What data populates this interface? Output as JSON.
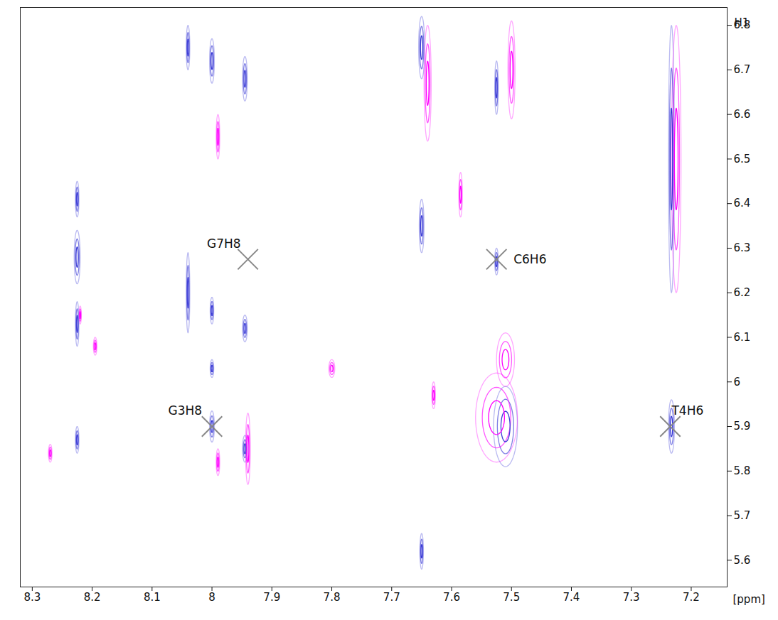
{
  "chart_data": {
    "type": "contour",
    "xlabel": "[ppm]",
    "ylabel": "H1",
    "xlim": [
      8.32,
      7.14
    ],
    "ylim": [
      5.54,
      6.84
    ],
    "xticks": [
      8.3,
      8.2,
      8.1,
      8,
      7.9,
      7.8,
      7.7,
      7.6,
      7.5,
      7.4,
      7.3,
      7.2
    ],
    "yticks": [
      5.6,
      5.7,
      5.8,
      5.9,
      6,
      6.1,
      6.2,
      6.3,
      6.4,
      6.5,
      6.6,
      6.7,
      6.8
    ],
    "series": [
      {
        "color": "#3a3ad6",
        "peaks": [
          {
            "x": 8.225,
            "y": 6.28,
            "dx": 0.005,
            "dy": 0.06
          },
          {
            "x": 8.225,
            "y": 5.87,
            "dx": 0.003,
            "dy": 0.03
          },
          {
            "x": 8.225,
            "y": 6.13,
            "dx": 0.003,
            "dy": 0.05
          },
          {
            "x": 8.225,
            "y": 6.41,
            "dx": 0.003,
            "dy": 0.04
          },
          {
            "x": 8.0,
            "y": 5.9,
            "dx": 0.004,
            "dy": 0.035
          },
          {
            "x": 8.0,
            "y": 6.03,
            "dx": 0.003,
            "dy": 0.02
          },
          {
            "x": 8.0,
            "y": 6.16,
            "dx": 0.003,
            "dy": 0.03
          },
          {
            "x": 8.0,
            "y": 6.72,
            "dx": 0.004,
            "dy": 0.05
          },
          {
            "x": 7.945,
            "y": 5.85,
            "dx": 0.004,
            "dy": 0.03
          },
          {
            "x": 7.945,
            "y": 6.12,
            "dx": 0.004,
            "dy": 0.03
          },
          {
            "x": 7.945,
            "y": 6.68,
            "dx": 0.004,
            "dy": 0.05
          },
          {
            "x": 8.04,
            "y": 6.2,
            "dx": 0.003,
            "dy": 0.09
          },
          {
            "x": 8.04,
            "y": 6.75,
            "dx": 0.003,
            "dy": 0.05
          },
          {
            "x": 7.65,
            "y": 6.35,
            "dx": 0.004,
            "dy": 0.06
          },
          {
            "x": 7.65,
            "y": 6.75,
            "dx": 0.005,
            "dy": 0.07
          },
          {
            "x": 7.65,
            "y": 5.62,
            "dx": 0.003,
            "dy": 0.04
          },
          {
            "x": 7.51,
            "y": 5.9,
            "dx": 0.02,
            "dy": 0.09
          },
          {
            "x": 7.525,
            "y": 6.27,
            "dx": 0.003,
            "dy": 0.03
          },
          {
            "x": 7.525,
            "y": 6.66,
            "dx": 0.003,
            "dy": 0.06
          },
          {
            "x": 7.233,
            "y": 5.9,
            "dx": 0.005,
            "dy": 0.06
          },
          {
            "x": 7.233,
            "y": 6.5,
            "dx": 0.005,
            "dy": 0.3
          }
        ]
      },
      {
        "color": "#ff00ff",
        "peaks": [
          {
            "x": 7.525,
            "y": 5.92,
            "dx": 0.035,
            "dy": 0.1
          },
          {
            "x": 7.51,
            "y": 6.05,
            "dx": 0.015,
            "dy": 0.06
          },
          {
            "x": 7.64,
            "y": 6.67,
            "dx": 0.006,
            "dy": 0.13
          },
          {
            "x": 7.5,
            "y": 6.7,
            "dx": 0.006,
            "dy": 0.11
          },
          {
            "x": 7.225,
            "y": 6.5,
            "dx": 0.008,
            "dy": 0.3
          },
          {
            "x": 7.94,
            "y": 5.85,
            "dx": 0.004,
            "dy": 0.08
          },
          {
            "x": 7.99,
            "y": 5.82,
            "dx": 0.003,
            "dy": 0.03
          },
          {
            "x": 7.99,
            "y": 6.55,
            "dx": 0.003,
            "dy": 0.05
          },
          {
            "x": 8.195,
            "y": 6.08,
            "dx": 0.003,
            "dy": 0.02
          },
          {
            "x": 8.22,
            "y": 6.15,
            "dx": 0.002,
            "dy": 0.02
          },
          {
            "x": 7.8,
            "y": 6.03,
            "dx": 0.005,
            "dy": 0.02
          },
          {
            "x": 8.27,
            "y": 5.84,
            "dx": 0.003,
            "dy": 0.02
          },
          {
            "x": 7.63,
            "y": 5.97,
            "dx": 0.003,
            "dy": 0.03
          },
          {
            "x": 7.585,
            "y": 6.42,
            "dx": 0.003,
            "dy": 0.05
          }
        ]
      }
    ],
    "annotations": [
      {
        "text": "G3H8",
        "x": 8.0,
        "y": 5.9
      },
      {
        "text": "T4H6",
        "x": 7.235,
        "y": 5.9
      },
      {
        "text": "G7H8",
        "x": 7.94,
        "y": 6.275
      },
      {
        "text": "C6H6",
        "x": 7.525,
        "y": 6.275
      }
    ]
  }
}
